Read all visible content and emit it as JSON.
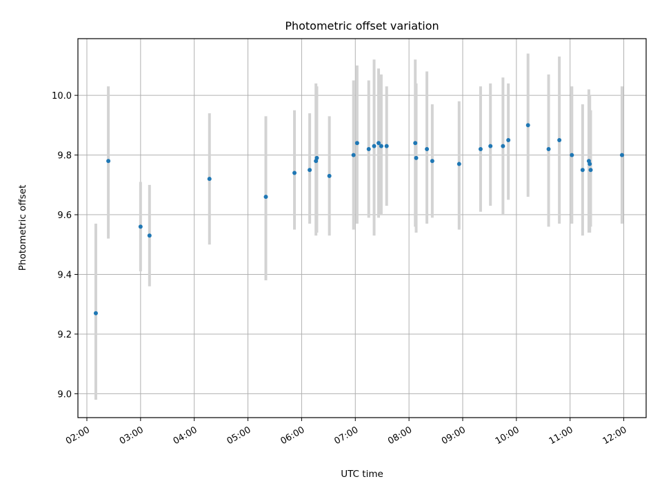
{
  "chart_data": {
    "type": "scatter",
    "title": "Photometric offset variation",
    "xlabel": "UTC time",
    "ylabel": "Photometric offset",
    "x_ticks": [
      "02:00",
      "03:00",
      "04:00",
      "05:00",
      "06:00",
      "07:00",
      "08:00",
      "09:00",
      "10:00",
      "11:00",
      "12:00"
    ],
    "y_ticks": [
      "9.0",
      "9.2",
      "9.4",
      "9.6",
      "9.8",
      "10.0"
    ],
    "xlim": [
      "01:50",
      "12:25"
    ],
    "ylim": [
      8.92,
      10.19
    ],
    "grid": true,
    "marker_color": "#1f77b4",
    "errorbar_color": "#d3d3d3",
    "series": [
      {
        "points": [
          {
            "x": "02:10",
            "y": 9.27,
            "ylow": 8.98,
            "yhigh": 9.57
          },
          {
            "x": "02:24",
            "y": 9.78,
            "ylow": 9.52,
            "yhigh": 10.03
          },
          {
            "x": "03:00",
            "y": 9.56,
            "ylow": 9.41,
            "yhigh": 9.71
          },
          {
            "x": "03:10",
            "y": 9.53,
            "ylow": 9.36,
            "yhigh": 9.7
          },
          {
            "x": "04:17",
            "y": 9.72,
            "ylow": 9.5,
            "yhigh": 9.94
          },
          {
            "x": "05:20",
            "y": 9.66,
            "ylow": 9.38,
            "yhigh": 9.93
          },
          {
            "x": "05:52",
            "y": 9.74,
            "ylow": 9.55,
            "yhigh": 9.95
          },
          {
            "x": "06:09",
            "y": 9.75,
            "ylow": 9.57,
            "yhigh": 9.94
          },
          {
            "x": "06:16",
            "y": 9.78,
            "ylow": 9.53,
            "yhigh": 10.04
          },
          {
            "x": "06:17",
            "y": 9.79,
            "ylow": 9.54,
            "yhigh": 10.03
          },
          {
            "x": "06:31",
            "y": 9.73,
            "ylow": 9.53,
            "yhigh": 9.93
          },
          {
            "x": "06:58",
            "y": 9.8,
            "ylow": 9.55,
            "yhigh": 10.05
          },
          {
            "x": "07:02",
            "y": 9.84,
            "ylow": 9.57,
            "yhigh": 10.1
          },
          {
            "x": "07:15",
            "y": 9.82,
            "ylow": 9.59,
            "yhigh": 10.05
          },
          {
            "x": "07:21",
            "y": 9.83,
            "ylow": 9.53,
            "yhigh": 10.12
          },
          {
            "x": "07:26",
            "y": 9.84,
            "ylow": 9.59,
            "yhigh": 10.09
          },
          {
            "x": "07:29",
            "y": 9.83,
            "ylow": 9.6,
            "yhigh": 10.07
          },
          {
            "x": "07:35",
            "y": 9.83,
            "ylow": 9.63,
            "yhigh": 10.03
          },
          {
            "x": "08:07",
            "y": 9.84,
            "ylow": 9.56,
            "yhigh": 10.12
          },
          {
            "x": "08:08",
            "y": 9.79,
            "ylow": 9.54,
            "yhigh": 10.04
          },
          {
            "x": "08:20",
            "y": 9.82,
            "ylow": 9.57,
            "yhigh": 10.08
          },
          {
            "x": "08:26",
            "y": 9.78,
            "ylow": 9.59,
            "yhigh": 9.97
          },
          {
            "x": "08:56",
            "y": 9.77,
            "ylow": 9.55,
            "yhigh": 9.98
          },
          {
            "x": "09:20",
            "y": 9.82,
            "ylow": 9.61,
            "yhigh": 10.03
          },
          {
            "x": "09:31",
            "y": 9.83,
            "ylow": 9.63,
            "yhigh": 10.04
          },
          {
            "x": "09:45",
            "y": 9.83,
            "ylow": 9.6,
            "yhigh": 10.06
          },
          {
            "x": "09:51",
            "y": 9.85,
            "ylow": 9.65,
            "yhigh": 10.04
          },
          {
            "x": "10:13",
            "y": 9.9,
            "ylow": 9.66,
            "yhigh": 10.14
          },
          {
            "x": "10:36",
            "y": 9.82,
            "ylow": 9.56,
            "yhigh": 10.07
          },
          {
            "x": "10:48",
            "y": 9.85,
            "ylow": 9.57,
            "yhigh": 10.13
          },
          {
            "x": "11:02",
            "y": 9.8,
            "ylow": 9.57,
            "yhigh": 10.03
          },
          {
            "x": "11:14",
            "y": 9.75,
            "ylow": 9.53,
            "yhigh": 9.97
          },
          {
            "x": "11:21",
            "y": 9.78,
            "ylow": 9.54,
            "yhigh": 10.02
          },
          {
            "x": "11:22",
            "y": 9.77,
            "ylow": 9.54,
            "yhigh": 10.0
          },
          {
            "x": "11:23",
            "y": 9.75,
            "ylow": 9.56,
            "yhigh": 9.95
          },
          {
            "x": "11:58",
            "y": 9.8,
            "ylow": 9.57,
            "yhigh": 10.03
          }
        ]
      }
    ]
  }
}
